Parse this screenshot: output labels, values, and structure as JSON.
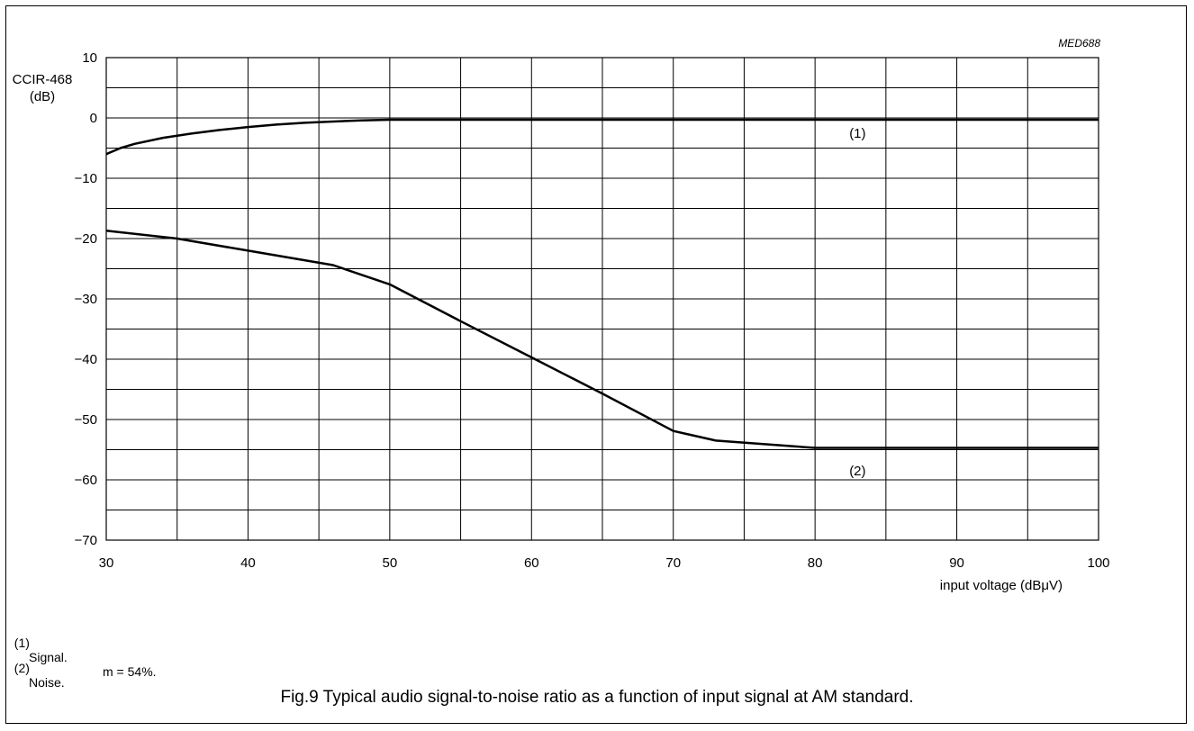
{
  "figure_code": "MED688",
  "chart_data": {
    "type": "line",
    "ylabel_line1": "CCIR-468",
    "ylabel_line2": "(dB)",
    "xlabel": "input voltage (dBμV)",
    "xlim": [
      30,
      100
    ],
    "ylim": [
      -70,
      10
    ],
    "x_ticks": [
      30,
      40,
      50,
      60,
      70,
      80,
      90,
      100
    ],
    "x_tick_labels": [
      "30",
      "40",
      "50",
      "60",
      "70",
      "80",
      "90",
      "100"
    ],
    "y_ticks": [
      10,
      0,
      -10,
      -20,
      -30,
      -40,
      -50,
      -60,
      -70
    ],
    "y_tick_labels": [
      "10",
      "0",
      "−10",
      "−20",
      "−30",
      "−40",
      "−50",
      "−60",
      "−70"
    ],
    "x_minor_step": 5,
    "y_minor_step": 5,
    "grid": true,
    "series": [
      {
        "label": "(1)",
        "x": [
          30,
          31,
          32,
          34,
          36,
          38,
          40,
          42,
          44,
          46,
          48,
          50,
          60,
          70,
          80,
          90,
          100
        ],
        "y": [
          -6,
          -5,
          -4.3,
          -3.3,
          -2.6,
          -2.0,
          -1.5,
          -1.1,
          -0.8,
          -0.6,
          -0.4,
          -0.3,
          -0.3,
          -0.3,
          -0.3,
          -0.3,
          -0.3
        ],
        "label_at": [
          83,
          -2.5
        ]
      },
      {
        "label": "(2)",
        "x": [
          30,
          35,
          40,
          46,
          50,
          55,
          60,
          65,
          70,
          73,
          80,
          90,
          100
        ],
        "y": [
          -18.7,
          -20,
          -22,
          -24.4,
          -27.6,
          -33.7,
          -39.7,
          -45.7,
          -51.9,
          -53.5,
          -54.7,
          -54.7,
          -54.7
        ],
        "label_at": [
          83,
          -58.5
        ]
      }
    ]
  },
  "notes": [
    {
      "key": "(1)",
      "text": "Signal.",
      "extra": "m = 54%."
    },
    {
      "key": "(2)",
      "text": "Noise.",
      "extra": ""
    }
  ],
  "caption": "Fig.9  Typical audio signal-to-noise ratio as a function of input signal at AM standard."
}
